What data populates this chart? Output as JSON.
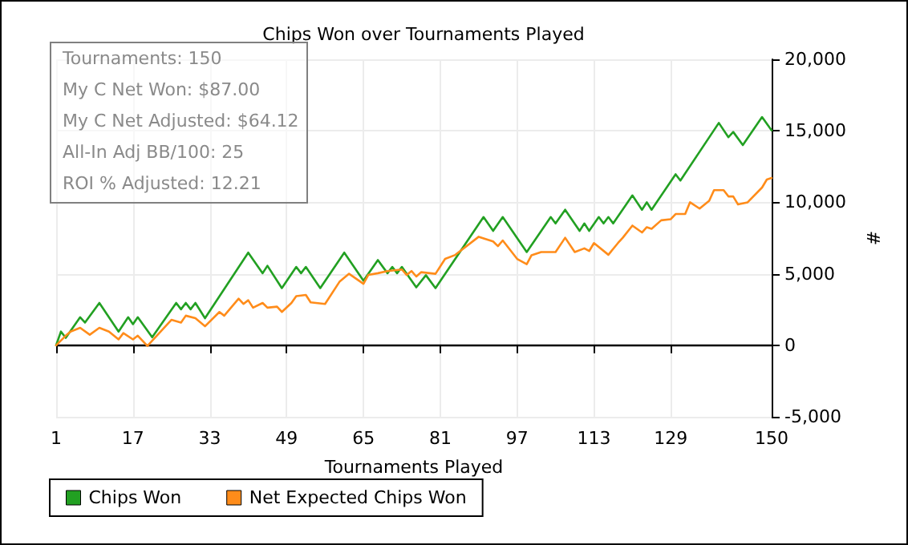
{
  "chart_data": {
    "type": "line",
    "title": "Chips Won over Tournaments Played",
    "xlabel": "Tournaments Played",
    "ylabel": "#",
    "annotations": [
      "Tournaments: 150",
      "My C Net Won: $87.00",
      "My C Net Adjusted: $64.12",
      "All-In Adj BB/100: 25",
      "ROI % Adjusted: 12.21"
    ],
    "xlim": [
      1,
      150
    ],
    "xticks": [
      1,
      17,
      33,
      49,
      65,
      81,
      97,
      113,
      129,
      150
    ],
    "ylim": [
      -5000,
      20000
    ],
    "yticks": [
      {
        "value": -5000,
        "label": "-5,000"
      },
      0,
      {
        "value": 5000,
        "label": "5,000"
      },
      {
        "value": 10000,
        "label": "10,000"
      },
      {
        "value": 15000,
        "label": "15,000"
      },
      {
        "value": 20000,
        "label": "20,000"
      }
    ],
    "grid": true,
    "legend": "bottom left",
    "marker": "none",
    "line_style": "solid",
    "ref_lines": [
      {
        "axis": "y",
        "value": 0,
        "color": "#000000"
      }
    ],
    "series": [
      {
        "name": "Chips Won",
        "color": "#22a022",
        "x": [
          1,
          2,
          3,
          6,
          7,
          10,
          14,
          16,
          17,
          18,
          21,
          26,
          27,
          28,
          29,
          30,
          32,
          41,
          44,
          45,
          48,
          51,
          52,
          53,
          56,
          61,
          65,
          68,
          70,
          71,
          72,
          73,
          76,
          78,
          80,
          90,
          92,
          94,
          99,
          104,
          105,
          107,
          110,
          111,
          112,
          114,
          115,
          116,
          117,
          121,
          123,
          124,
          125,
          130,
          131,
          139,
          141,
          142,
          144,
          148,
          150
        ],
        "values": [
          0,
          960,
          520,
          1960,
          1590,
          2960,
          960,
          1960,
          1480,
          1960,
          560,
          2960,
          2520,
          2960,
          2520,
          2960,
          1890,
          6480,
          5040,
          5560,
          4000,
          5480,
          5040,
          5480,
          4000,
          6480,
          4520,
          5960,
          5040,
          5480,
          5040,
          5480,
          4050,
          4900,
          4000,
          8970,
          8000,
          8970,
          6520,
          8970,
          8520,
          9480,
          8000,
          8520,
          8000,
          8970,
          8520,
          8970,
          8520,
          10480,
          9480,
          10000,
          9480,
          11960,
          11520,
          15550,
          14550,
          14920,
          14000,
          15960,
          15030
        ]
      },
      {
        "name": "Net Expected Chips Won",
        "color": "#ff8c1a",
        "x": [
          1,
          3,
          4,
          6,
          8,
          10,
          12,
          14,
          15,
          17,
          18,
          20,
          25,
          27,
          28,
          30,
          32,
          35,
          36,
          39,
          40,
          41,
          42,
          44,
          45,
          47,
          48,
          50,
          51,
          53,
          54,
          57,
          60,
          62,
          65,
          66,
          68,
          70,
          73,
          74,
          75,
          76,
          77,
          80,
          82,
          84,
          89,
          92,
          93,
          94,
          97,
          99,
          100,
          102,
          105,
          107,
          109,
          111,
          112,
          113,
          116,
          118,
          119,
          121,
          123,
          124,
          125,
          127,
          129,
          130,
          132,
          133,
          135,
          137,
          138,
          140,
          141,
          142,
          143,
          145,
          148,
          149,
          150
        ],
        "values": [
          0,
          670,
          960,
          1220,
          740,
          1220,
          960,
          410,
          850,
          410,
          670,
          -50,
          1780,
          1590,
          2070,
          1890,
          1330,
          2330,
          2070,
          3260,
          2890,
          3150,
          2630,
          2960,
          2630,
          2700,
          2330,
          2960,
          3440,
          3520,
          3000,
          2890,
          4440,
          5000,
          4300,
          4920,
          5040,
          5190,
          5300,
          4920,
          5190,
          4810,
          5110,
          5000,
          6040,
          6300,
          7590,
          7260,
          6930,
          7330,
          6040,
          5670,
          6300,
          6520,
          6520,
          7520,
          6520,
          6780,
          6590,
          7150,
          6330,
          7150,
          7520,
          8370,
          7890,
          8260,
          8150,
          8740,
          8820,
          9180,
          9180,
          10000,
          9560,
          10110,
          10850,
          10850,
          10410,
          10410,
          9850,
          10000,
          11030,
          11590,
          11700
        ]
      }
    ]
  }
}
